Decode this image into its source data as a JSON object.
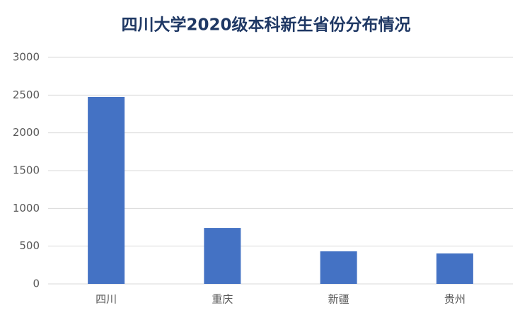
{
  "chart_data": {
    "type": "bar",
    "title": "四川大学2020级本科新生省份分布情况",
    "categories": [
      "四川",
      "重庆",
      "新疆",
      "贵州"
    ],
    "values": [
      2475,
      740,
      431,
      403
    ],
    "color": "#4472c4",
    "ylim": [
      0,
      3000
    ],
    "yticks": [
      0,
      500,
      1000,
      1500,
      2000,
      2500,
      3000
    ],
    "grid": true
  }
}
